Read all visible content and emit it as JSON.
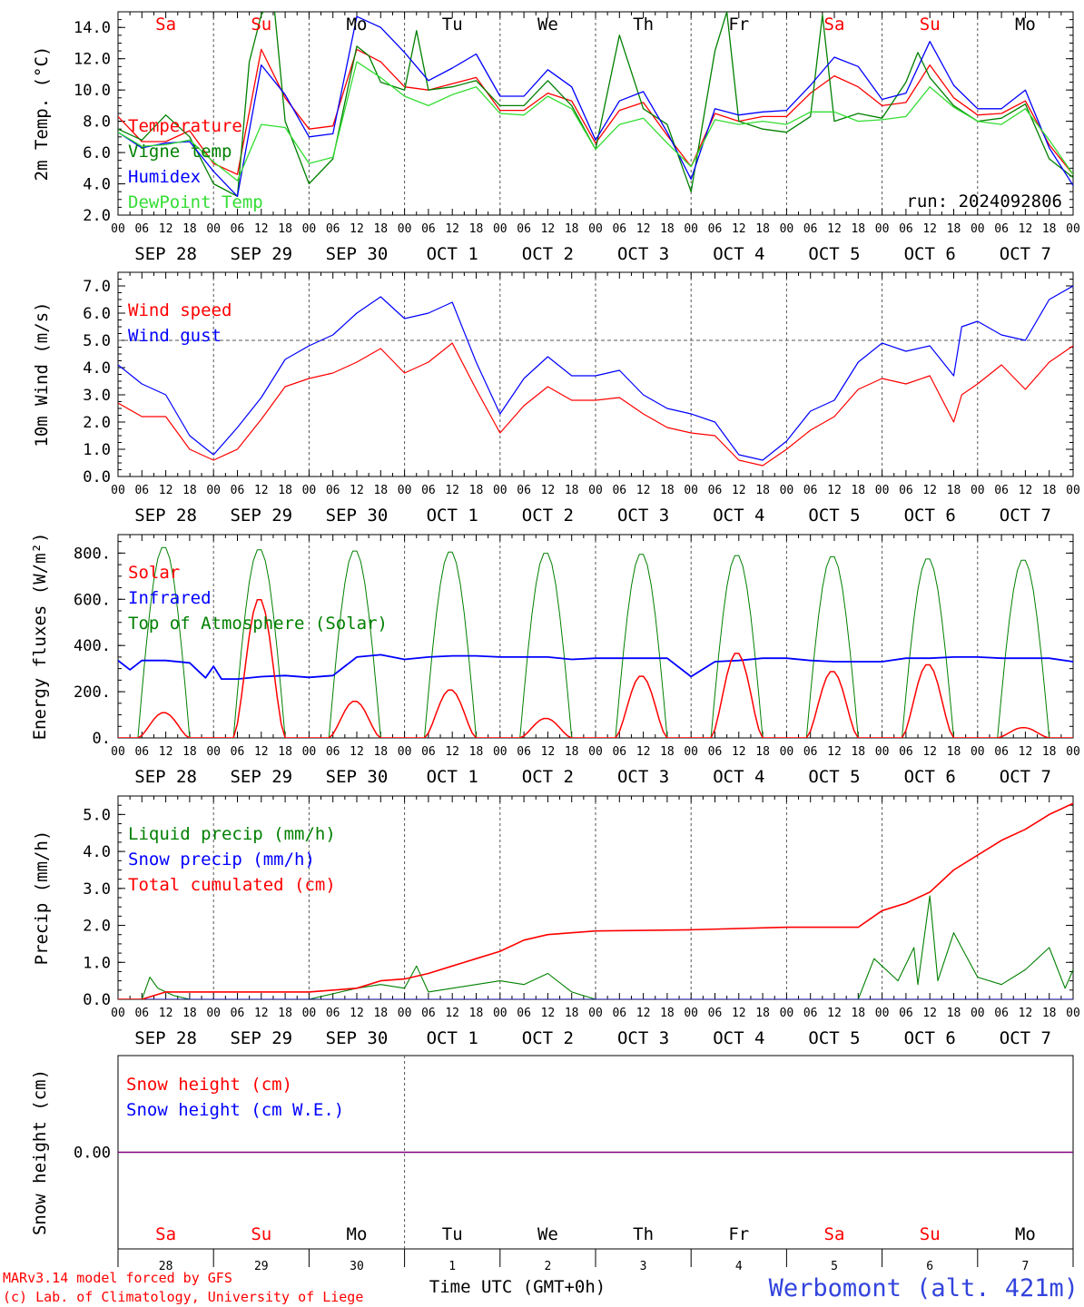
{
  "run_label": "run: 2024092806",
  "x_hours": [
    "00",
    "06",
    "12",
    "18"
  ],
  "x_end_hour": "00",
  "date_labels": [
    "SEP 28",
    "SEP 29",
    "SEP 30",
    "OCT  1",
    "OCT  2",
    "OCT  3",
    "OCT  4",
    "OCT  5",
    "OCT  6",
    "OCT  7"
  ],
  "weekdays": [
    {
      "label": "Sa",
      "color": "#ff0000"
    },
    {
      "label": "Su",
      "color": "#ff0000"
    },
    {
      "label": "Mo",
      "color": "#000000"
    },
    {
      "label": "Tu",
      "color": "#000000"
    },
    {
      "label": "We",
      "color": "#000000"
    },
    {
      "label": "Th",
      "color": "#000000"
    },
    {
      "label": "Fr",
      "color": "#000000"
    },
    {
      "label": "Sa",
      "color": "#ff0000"
    },
    {
      "label": "Su",
      "color": "#ff0000"
    },
    {
      "label": "Mo",
      "color": "#000000"
    }
  ],
  "bottom_day_numbers": [
    "28",
    "29",
    "30",
    "1",
    "2",
    "3",
    "4",
    "5",
    "6",
    "7"
  ],
  "x_axis_title": "Time UTC (GMT+0h)",
  "station": "Werbomont (alt. 421m)",
  "footer_line1": "MARv3.14 model forced by GFS",
  "footer_line2": "(c) Lab. of Climatology, University of Liege",
  "colors": {
    "red": "#ff0000",
    "green": "#008000",
    "blue": "#0000ff",
    "lightgreen": "#33dd33",
    "purple": "#800080"
  },
  "chart_data": [
    {
      "type": "line",
      "ylabel": "2m Temp. (°C)",
      "ylim": [
        2,
        15
      ],
      "yticks": [
        2,
        4,
        6,
        8,
        10,
        12,
        14
      ],
      "ytick_labels": [
        "2.0",
        "4.0",
        "6.0",
        "8.0",
        "10.0",
        "12.0",
        "14.0"
      ],
      "legend": [
        {
          "name": "Temperature",
          "color": "#ff0000"
        },
        {
          "name": "Vigne temp",
          "color": "#008000"
        },
        {
          "name": "Humidex",
          "color": "#0000ff"
        },
        {
          "name": "DewPoint Temp",
          "color": "#33dd33"
        }
      ],
      "series": [
        {
          "name": "Temperature",
          "color": "#ff0000",
          "x": [
            0,
            6,
            12,
            18,
            24,
            30,
            36,
            42,
            48,
            54,
            60,
            66,
            72,
            78,
            84,
            90,
            96,
            102,
            108,
            114,
            120,
            126,
            132,
            138,
            144,
            150,
            156,
            162,
            168,
            174,
            180,
            186,
            192,
            198,
            204,
            210,
            216,
            222,
            228,
            234,
            240
          ],
          "y": [
            8.3,
            6.7,
            6.7,
            7.4,
            5.3,
            4.6,
            12.6,
            9.5,
            7.5,
            7.7,
            12.6,
            11.8,
            10.2,
            10.0,
            10.4,
            10.8,
            8.7,
            8.7,
            9.8,
            9.3,
            6.6,
            8.7,
            9.2,
            7.1,
            5.1,
            8.5,
            8.0,
            8.3,
            8.3,
            9.8,
            10.9,
            10.2,
            9.0,
            9.2,
            11.6,
            9.5,
            8.4,
            8.5,
            9.3,
            6.5,
            4.6
          ]
        },
        {
          "name": "Vigne temp",
          "color": "#008000",
          "x": [
            0,
            6,
            12,
            18,
            24,
            30,
            33,
            36,
            39,
            42,
            48,
            54,
            60,
            63,
            66,
            72,
            75,
            78,
            84,
            90,
            96,
            102,
            108,
            114,
            120,
            126,
            132,
            138,
            144,
            150,
            153,
            156,
            162,
            168,
            174,
            177,
            180,
            186,
            192,
            198,
            201,
            204,
            210,
            216,
            222,
            228,
            234,
            240
          ],
          "y": [
            7.5,
            6.8,
            8.4,
            7.0,
            4.0,
            3.2,
            11.8,
            14.8,
            16.0,
            8.0,
            4.0,
            5.6,
            12.8,
            12.2,
            10.5,
            10.0,
            13.8,
            10.0,
            10.2,
            10.6,
            9.0,
            9.0,
            10.6,
            9.0,
            6.2,
            13.5,
            8.8,
            7.8,
            3.5,
            12.5,
            15.0,
            8.0,
            7.5,
            7.3,
            8.3,
            14.8,
            8.0,
            8.5,
            8.2,
            10.5,
            12.4,
            10.8,
            9.0,
            8.0,
            8.2,
            9.1,
            5.6,
            4.4
          ]
        },
        {
          "name": "Humidex",
          "color": "#0000ff",
          "x": [
            0,
            6,
            12,
            18,
            24,
            30,
            36,
            42,
            48,
            54,
            60,
            66,
            72,
            78,
            84,
            90,
            96,
            102,
            108,
            114,
            120,
            126,
            132,
            138,
            144,
            150,
            156,
            162,
            168,
            174,
            180,
            186,
            192,
            198,
            204,
            210,
            216,
            222,
            228,
            234,
            240
          ],
          "y": [
            7.3,
            6.3,
            6.6,
            6.7,
            4.8,
            3.2,
            11.6,
            9.7,
            7.0,
            7.2,
            14.7,
            14.0,
            12.4,
            10.6,
            11.4,
            12.3,
            9.6,
            9.6,
            11.3,
            10.2,
            6.8,
            9.3,
            9.9,
            7.3,
            4.3,
            8.8,
            8.4,
            8.6,
            8.7,
            10.3,
            12.1,
            11.5,
            9.4,
            9.8,
            13.1,
            10.3,
            8.8,
            8.8,
            10.0,
            6.3,
            3.9
          ]
        },
        {
          "name": "DewPoint Temp",
          "color": "#33dd33",
          "x": [
            0,
            6,
            12,
            18,
            24,
            30,
            36,
            42,
            48,
            54,
            60,
            66,
            72,
            78,
            84,
            90,
            96,
            102,
            108,
            114,
            120,
            126,
            132,
            138,
            144,
            150,
            156,
            162,
            168,
            174,
            180,
            186,
            192,
            198,
            204,
            210,
            216,
            222,
            228,
            234,
            240
          ],
          "y": [
            7.3,
            6.4,
            6.5,
            6.8,
            5.4,
            4.2,
            7.8,
            7.6,
            5.3,
            5.7,
            11.8,
            10.8,
            9.6,
            9.0,
            9.7,
            10.2,
            8.5,
            8.4,
            9.6,
            8.8,
            6.2,
            7.8,
            8.2,
            6.6,
            5.1,
            8.1,
            7.8,
            8.0,
            7.8,
            8.6,
            8.6,
            8.0,
            8.1,
            8.3,
            10.2,
            8.9,
            8.0,
            7.8,
            8.8,
            6.8,
            4.6
          ]
        }
      ]
    },
    {
      "type": "line",
      "ylabel": "10m Wind (m/s)",
      "ylim": [
        0,
        7.5
      ],
      "yticks": [
        0,
        1,
        2,
        3,
        4,
        5,
        6,
        7
      ],
      "ytick_labels": [
        "0.0",
        "1.0",
        "2.0",
        "3.0",
        "4.0",
        "5.0",
        "6.0",
        "7.0"
      ],
      "hline": 5,
      "legend": [
        {
          "name": "Wind speed",
          "color": "#ff0000"
        },
        {
          "name": "Wind gust",
          "color": "#0000ff"
        }
      ],
      "series": [
        {
          "name": "Wind speed",
          "color": "#ff0000",
          "x": [
            0,
            6,
            12,
            18,
            24,
            30,
            36,
            42,
            48,
            54,
            60,
            66,
            72,
            78,
            84,
            90,
            96,
            102,
            108,
            114,
            120,
            126,
            132,
            138,
            144,
            150,
            156,
            162,
            168,
            174,
            180,
            186,
            192,
            198,
            204,
            210,
            212,
            216,
            222,
            228,
            234,
            240
          ],
          "y": [
            2.7,
            2.2,
            2.2,
            1.0,
            0.6,
            1.0,
            2.1,
            3.3,
            3.6,
            3.8,
            4.2,
            4.7,
            3.8,
            4.2,
            4.9,
            3.2,
            1.6,
            2.6,
            3.3,
            2.8,
            2.8,
            2.9,
            2.3,
            1.8,
            1.6,
            1.5,
            0.6,
            0.4,
            1.0,
            1.7,
            2.2,
            3.2,
            3.6,
            3.4,
            3.7,
            2.0,
            3.0,
            3.4,
            4.1,
            3.2,
            4.2,
            4.8
          ]
        },
        {
          "name": "Wind gust",
          "color": "#0000ff",
          "x": [
            0,
            6,
            12,
            18,
            24,
            30,
            36,
            42,
            48,
            54,
            60,
            66,
            72,
            78,
            84,
            90,
            96,
            102,
            108,
            114,
            120,
            126,
            132,
            138,
            144,
            150,
            156,
            162,
            168,
            174,
            180,
            186,
            192,
            198,
            204,
            210,
            212,
            216,
            222,
            228,
            234,
            240
          ],
          "y": [
            4.1,
            3.4,
            3.0,
            1.5,
            0.8,
            1.8,
            2.9,
            4.3,
            4.8,
            5.2,
            6.0,
            6.6,
            5.8,
            6.0,
            6.4,
            4.2,
            2.3,
            3.6,
            4.4,
            3.7,
            3.7,
            3.9,
            3.0,
            2.5,
            2.3,
            2.0,
            0.8,
            0.6,
            1.3,
            2.4,
            2.8,
            4.2,
            4.9,
            4.6,
            4.8,
            3.7,
            5.5,
            5.7,
            5.2,
            5.0,
            6.5,
            7.0
          ]
        }
      ]
    },
    {
      "type": "line",
      "ylabel": "Energy fluxes (W/m²)",
      "ylim": [
        0,
        880
      ],
      "yticks": [
        0,
        200,
        400,
        600,
        800
      ],
      "ytick_labels": [
        "0.",
        "200.",
        "400.",
        "600.",
        "800."
      ],
      "legend": [
        {
          "name": "Solar",
          "color": "#ff0000"
        },
        {
          "name": "Infrared",
          "color": "#0000ff"
        },
        {
          "name": "Top of Atmosphere (Solar)",
          "color": "#008000"
        }
      ],
      "toa_peaks": [
        830,
        820,
        815,
        810,
        805,
        800,
        795,
        790,
        780,
        775
      ],
      "solar_peaks": [
        110,
        605,
        160,
        210,
        85,
        270,
        370,
        290,
        320,
        45
      ],
      "series": [
        {
          "name": "Infrared",
          "color": "#0000ff",
          "x": [
            0,
            3,
            6,
            12,
            18,
            22,
            24,
            26,
            30,
            36,
            42,
            48,
            54,
            60,
            66,
            72,
            78,
            84,
            90,
            96,
            102,
            108,
            114,
            120,
            126,
            132,
            138,
            144,
            150,
            156,
            162,
            168,
            174,
            180,
            186,
            192,
            198,
            204,
            210,
            216,
            222,
            228,
            234,
            240
          ],
          "y": [
            335,
            295,
            335,
            335,
            325,
            260,
            310,
            255,
            255,
            265,
            270,
            262,
            270,
            350,
            360,
            340,
            350,
            355,
            355,
            350,
            350,
            350,
            340,
            345,
            345,
            345,
            345,
            265,
            330,
            335,
            345,
            345,
            335,
            330,
            330,
            330,
            345,
            345,
            350,
            350,
            345,
            345,
            345,
            330
          ]
        },
        {
          "name": "Solar",
          "color": "#ff0000",
          "x": [],
          "y": []
        },
        {
          "name": "Top of Atmosphere (Solar)",
          "color": "#008000",
          "x": [],
          "y": []
        }
      ]
    },
    {
      "type": "line",
      "ylabel": "Precip (mm/h)",
      "ylim": [
        0,
        5.5
      ],
      "yticks": [
        0,
        1,
        2,
        3,
        4,
        5
      ],
      "ytick_labels": [
        "0.0",
        "1.0",
        "2.0",
        "3.0",
        "4.0",
        "5.0"
      ],
      "legend": [
        {
          "name": "Liquid precip (mm/h)",
          "color": "#008000"
        },
        {
          "name": "Snow precip (mm/h)",
          "color": "#0000ff"
        },
        {
          "name": "Total cumulated (cm)",
          "color": "#ff0000"
        }
      ],
      "series": [
        {
          "name": "Liquid precip (mm/h)",
          "color": "#008000",
          "x": [
            0,
            6,
            8,
            10,
            14,
            18,
            24,
            48,
            60,
            66,
            72,
            75,
            78,
            84,
            90,
            96,
            102,
            108,
            114,
            120,
            168,
            186,
            190,
            196,
            200,
            201,
            204,
            206,
            210,
            216,
            222,
            228,
            234,
            238,
            240
          ],
          "y": [
            0,
            0,
            0.6,
            0.3,
            0.1,
            0,
            0,
            0,
            0.3,
            0.4,
            0.3,
            0.9,
            0.2,
            0.3,
            0.4,
            0.5,
            0.4,
            0.7,
            0.2,
            0,
            0,
            0,
            1.1,
            0.5,
            1.4,
            0.4,
            2.8,
            0.5,
            1.8,
            0.6,
            0.4,
            0.8,
            1.4,
            0.3,
            0.8
          ]
        },
        {
          "name": "Snow precip (mm/h)",
          "color": "#0000ff",
          "x": [
            0,
            240
          ],
          "y": [
            0,
            0
          ]
        },
        {
          "name": "Total cumulated (cm)",
          "color": "#ff0000",
          "x": [
            0,
            6,
            12,
            18,
            24,
            48,
            60,
            66,
            72,
            78,
            84,
            90,
            96,
            102,
            108,
            114,
            120,
            144,
            168,
            186,
            192,
            198,
            204,
            210,
            216,
            222,
            228,
            234,
            240
          ],
          "y": [
            0,
            0,
            0.2,
            0.2,
            0.2,
            0.2,
            0.3,
            0.5,
            0.55,
            0.7,
            0.9,
            1.1,
            1.3,
            1.6,
            1.75,
            1.8,
            1.85,
            1.88,
            1.95,
            1.95,
            2.4,
            2.6,
            2.9,
            3.5,
            3.9,
            4.3,
            4.6,
            5.0,
            5.3
          ]
        }
      ]
    },
    {
      "type": "line",
      "ylabel": "Snow height (cm)",
      "ylim": [
        -1,
        1
      ],
      "yticks": [
        0
      ],
      "ytick_labels": [
        "0.00"
      ],
      "legend": [
        {
          "name": "Snow height (cm)",
          "color": "#ff0000"
        },
        {
          "name": "Snow height (cm W.E.)",
          "color": "#0000ff"
        }
      ],
      "series": [
        {
          "name": "Snow height (cm)",
          "color": "#800080",
          "x": [
            0,
            240
          ],
          "y": [
            0,
            0
          ]
        }
      ]
    }
  ]
}
